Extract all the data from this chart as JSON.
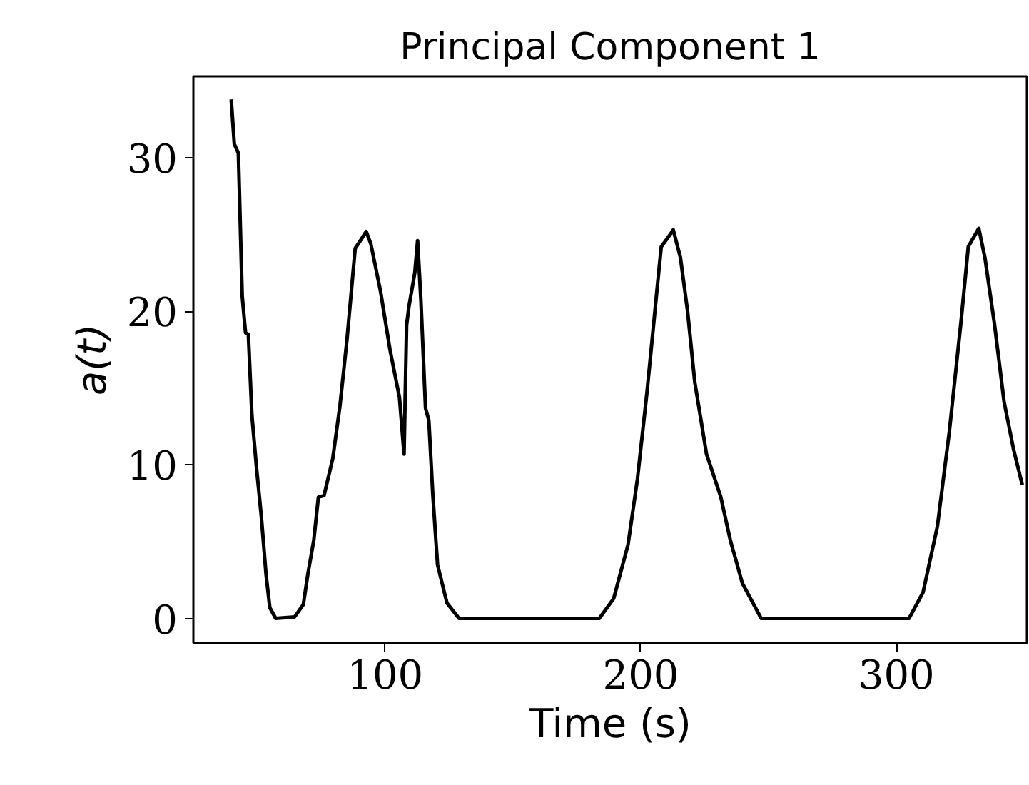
{
  "chart_data": {
    "type": "line",
    "title": "Principal Component 1",
    "xlabel": "Time (s)",
    "ylabel": "a(t)",
    "x": [
      39.8,
      41,
      42.6,
      44.1,
      45.4,
      46.5,
      47.9,
      49.7,
      51.6,
      53.4,
      54.9,
      57.2,
      64.6,
      68,
      69.8,
      72.1,
      73.9,
      76.1,
      79.5,
      82.3,
      85.1,
      88.3,
      90.7,
      92.6,
      94.4,
      98.2,
      101.9,
      105.6,
      107.4,
      108.4,
      109.3,
      111.6,
      112.7,
      114,
      115.8,
      117.1,
      118.6,
      120.5,
      124.2,
      128.9,
      183.8,
      189.4,
      195,
      198.7,
      202.4,
      206.1,
      208,
      210.2,
      212.7,
      215.5,
      218.3,
      221.1,
      225.7,
      231.3,
      235,
      239.7,
      247.1,
      304.9,
      310.4,
      316,
      320.7,
      325.3,
      328.1,
      332.2,
      334.6,
      338.4,
      342.1,
      345.8,
      349.2
    ],
    "series": [
      {
        "color": "#000000",
        "values": [
          33.8,
          30.9,
          30.3,
          21.0,
          18.6,
          18.5,
          13.2,
          9.8,
          6.6,
          2.9,
          0.7,
          0,
          0.1,
          0.9,
          2.9,
          5.1,
          7.9,
          8.0,
          10.4,
          13.8,
          18.2,
          24.1,
          24.7,
          25.2,
          24.4,
          21.3,
          17.5,
          14.4,
          10.7,
          19.1,
          20.3,
          22.5,
          24.6,
          20.7,
          13.7,
          12.9,
          8.2,
          3.5,
          1.0,
          0,
          0,
          1.3,
          4.8,
          9.1,
          14.7,
          21.0,
          24.2,
          24.7,
          25.3,
          23.5,
          20.0,
          15.4,
          10.7,
          7.9,
          5.1,
          2.3,
          0,
          0,
          1.7,
          6.0,
          12.2,
          19.4,
          24.2,
          25.4,
          23.5,
          19.1,
          14.1,
          11.0,
          8.7
        ]
      }
    ],
    "xlim": [
      25,
      351
    ],
    "ylim": [
      -1.6,
      35.3
    ],
    "xticks": [
      100,
      200,
      300
    ],
    "yticks": [
      0,
      10,
      20,
      30
    ],
    "grid": false,
    "line_style": "solid",
    "marker": "none"
  }
}
